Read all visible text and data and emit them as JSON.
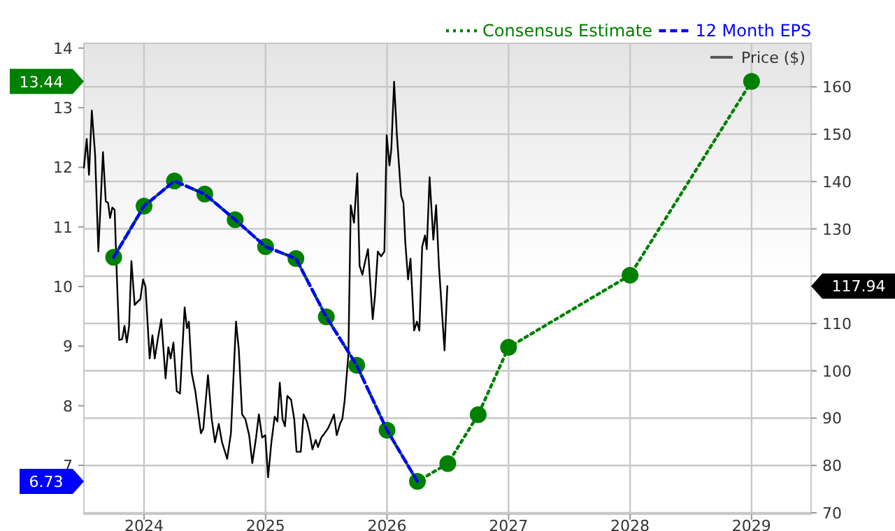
{
  "chart_data": {
    "type": "line",
    "xlim": [
      2023.505,
      2029.49
    ],
    "xticks": [
      2024,
      2025,
      2026,
      2027,
      2028,
      2029
    ],
    "ylim": [
      6.18,
      14.08
    ],
    "yticks": [
      7,
      8,
      9,
      10,
      11,
      12,
      13,
      14
    ],
    "y2lim": [
      69.7,
      169.2
    ],
    "y2ticks": [
      70,
      80,
      90,
      100,
      110,
      {
        "value": 120,
        "label": null
      },
      130,
      140,
      150,
      160
    ],
    "annotations": [
      "13.44",
      "6.73",
      "117.94"
    ],
    "grid": true,
    "legend": "top right",
    "series": [
      {
        "name": "Consensus Estimate",
        "color": "#008000",
        "line_style": "dotted",
        "marker": "circle",
        "x": [
          2023.75,
          2024.0,
          2024.25,
          2024.5,
          2024.75,
          2025.0,
          2025.25,
          2025.5,
          2025.75,
          2026.0,
          2026.25,
          2026.5,
          2026.75,
          2027.0,
          2028.0,
          2029.0
        ],
        "values": [
          10.49,
          11.35,
          11.77,
          11.55,
          11.12,
          10.67,
          10.47,
          9.49,
          8.68,
          7.59,
          6.73,
          7.03,
          7.85,
          8.98,
          10.19,
          13.44
        ]
      },
      {
        "name": "12 Month EPS",
        "color": "#0000ff",
        "line_style": "dashed",
        "marker": "none",
        "x": [
          2023.75,
          2024.0,
          2024.25,
          2024.5,
          2024.75,
          2025.0,
          2025.25,
          2025.5,
          2025.75,
          2026.0,
          2026.25
        ],
        "values": [
          10.49,
          11.35,
          11.77,
          11.55,
          11.12,
          10.67,
          10.47,
          9.49,
          8.68,
          7.59,
          6.73
        ]
      },
      {
        "name": "Price ($)",
        "color": "#000000",
        "line_style": "solid",
        "marker": "none",
        "axis": "y2",
        "x": [
          2023.505,
          2023.528,
          2023.547,
          2023.57,
          2023.597,
          2023.624,
          2023.662,
          2023.685,
          2023.704,
          2023.72,
          2023.739,
          2023.758,
          2023.777,
          2023.796,
          2023.82,
          2023.839,
          2023.858,
          2023.877,
          2023.896,
          2023.923,
          2023.946,
          2023.969,
          2023.992,
          2024.012,
          2024.046,
          2024.069,
          2024.088,
          2024.115,
          2024.142,
          2024.177,
          2024.2,
          2024.219,
          2024.242,
          2024.269,
          2024.296,
          2024.334,
          2024.353,
          2024.369,
          2024.392,
          2024.422,
          2024.468,
          2024.488,
          2024.526,
          2024.557,
          2024.584,
          2024.615,
          2024.642,
          2024.684,
          2024.715,
          2024.757,
          2024.78,
          2024.807,
          2024.834,
          2024.865,
          2024.891,
          2024.922,
          2024.945,
          2024.972,
          2024.998,
          2025.021,
          2025.048,
          2025.075,
          2025.098,
          2025.117,
          2025.14,
          2025.16,
          2025.179,
          2025.21,
          2025.236,
          2025.255,
          2025.29,
          2025.313,
          2025.34,
          2025.363,
          2025.386,
          2025.413,
          2025.432,
          2025.459,
          2025.486,
          2025.513,
          2025.54,
          2025.563,
          2025.586,
          2025.613,
          2025.632,
          2025.651,
          2025.682,
          2025.701,
          2025.728,
          2025.755,
          2025.774,
          2025.797,
          2025.816,
          2025.843,
          2025.882,
          2025.901,
          2025.924,
          2025.951,
          2025.978,
          2025.997,
          2026.02,
          2026.035,
          2026.058,
          2026.081,
          2026.116,
          2026.135,
          2026.15,
          2026.173,
          2026.193,
          2026.223,
          2026.246,
          2026.266,
          2026.289,
          2026.312,
          2026.327,
          2026.35,
          2026.381,
          2026.404,
          2026.427,
          2026.473,
          2026.496
        ],
        "values": [
          142.9,
          149.0,
          141.4,
          155.0,
          145.8,
          125.2,
          146.2,
          135.8,
          135.5,
          132.3,
          134.5,
          134.0,
          119.3,
          106.5,
          106.7,
          109.5,
          106.0,
          109.5,
          123.2,
          113.9,
          114.6,
          115.1,
          119.3,
          117.8,
          102.6,
          107.5,
          102.6,
          107.0,
          110.9,
          98.4,
          105.0,
          102.6,
          106.0,
          95.7,
          95.2,
          113.4,
          109.0,
          110.4,
          99.6,
          95.7,
          86.8,
          87.8,
          99.1,
          89.8,
          84.9,
          88.8,
          84.9,
          81.4,
          86.8,
          110.4,
          104.5,
          90.8,
          89.8,
          86.4,
          80.5,
          85.9,
          90.8,
          85.9,
          86.4,
          77.5,
          84.9,
          90.3,
          89.3,
          97.5,
          89.8,
          88.3,
          94.7,
          93.9,
          89.8,
          82.9,
          82.9,
          90.8,
          89.3,
          86.8,
          83.4,
          85.4,
          83.9,
          85.9,
          86.8,
          87.8,
          89.3,
          90.8,
          86.4,
          88.8,
          89.8,
          93.7,
          103.6,
          135.0,
          131.3,
          141.7,
          122.2,
          120.3,
          122.7,
          125.7,
          110.9,
          115.9,
          125.2,
          124.2,
          125.2,
          149.8,
          143.4,
          146.8,
          161.1,
          149.8,
          137.0,
          135.5,
          127.2,
          119.3,
          123.7,
          108.5,
          110.4,
          108.5,
          126.2,
          128.6,
          125.7,
          140.9,
          127.7,
          135.0,
          122.2,
          104.3,
          117.9
        ]
      }
    ]
  }
}
